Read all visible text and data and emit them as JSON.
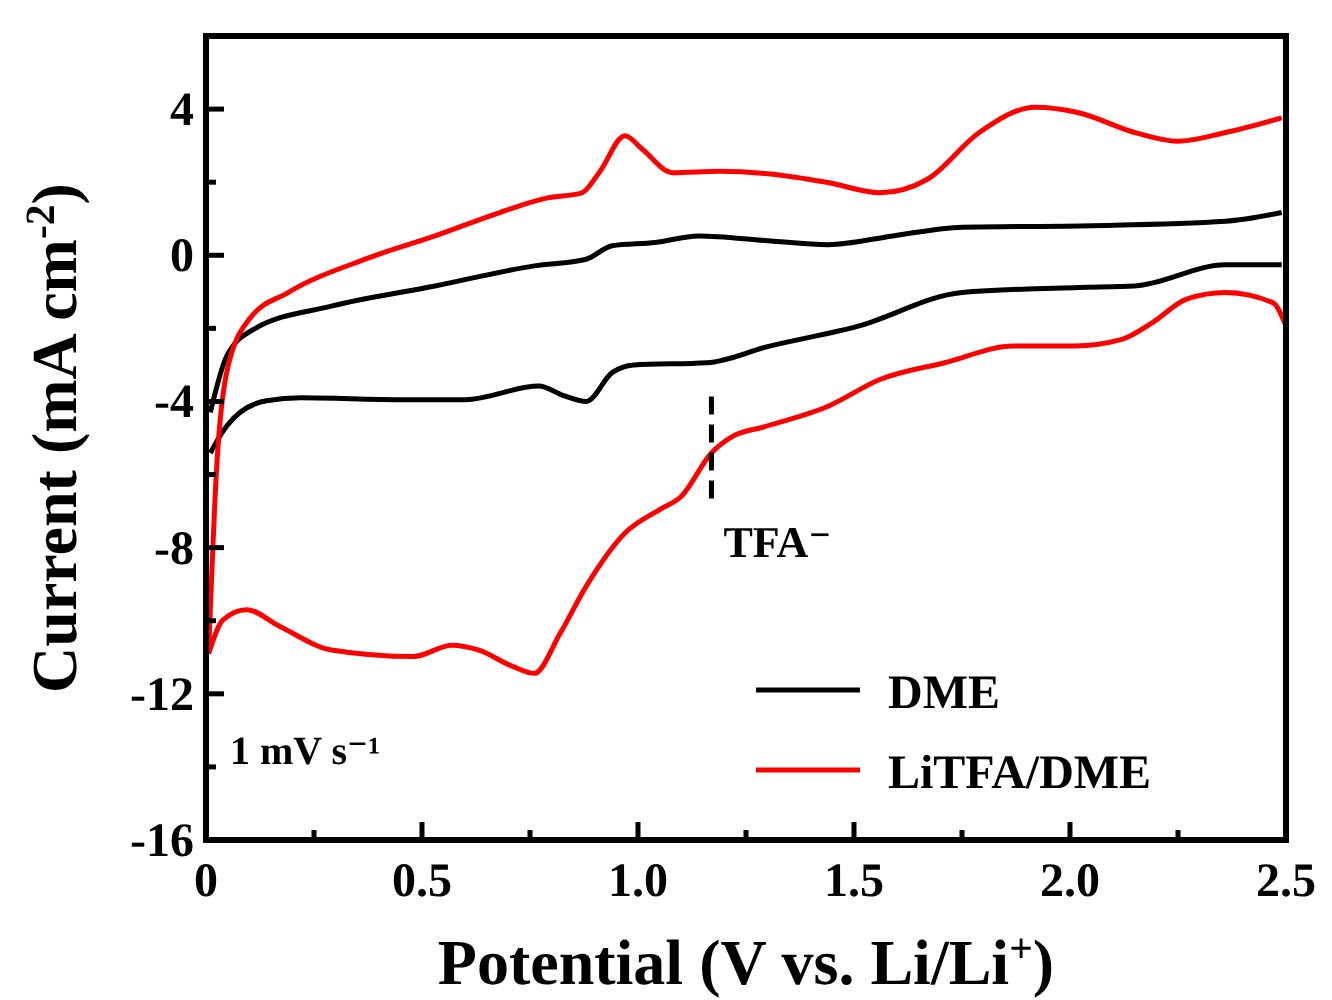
{
  "chart_data": {
    "type": "line",
    "xlabel": "Potential (V vs. Li/Li$^{+}$)",
    "ylabel": "Current (mA cm$^{-2}$)",
    "xlim": [
      0,
      2.5
    ],
    "ylim": [
      -16,
      6
    ],
    "xticks": [
      0,
      {
        "value": 0.25,
        "label": null
      },
      {
        "value": 0.5,
        "label": "0.5"
      },
      {
        "value": 0.75,
        "label": null
      },
      {
        "value": 1,
        "label": "1.0"
      },
      {
        "value": 1.25,
        "label": null
      },
      {
        "value": 1.5,
        "label": "1.5"
      },
      {
        "value": 1.75,
        "label": null
      },
      {
        "value": 2,
        "label": "2.0"
      },
      {
        "value": 2.25,
        "label": null
      },
      {
        "value": 2.5,
        "label": "2.5"
      }
    ],
    "yticks": [
      -16,
      {
        "value": -14,
        "label": null
      },
      -12,
      {
        "value": -10,
        "label": null
      },
      -8,
      {
        "value": -6,
        "label": null
      },
      -4,
      {
        "value": -2,
        "label": null
      },
      0,
      {
        "value": 2,
        "label": null
      },
      4
    ],
    "legend": "bottom right",
    "grid": false,
    "marker": "none",
    "line_style": "solid",
    "annotations": [
      {
        "text": "TFA⁻",
        "x": 1.17,
        "y": -5.4
      },
      "1 mV s⁻¹"
    ],
    "series": [
      {
        "name": "DME",
        "color": "#000000",
        "x": [
          0.01,
          0.048,
          0.11,
          0.29,
          0.53,
          0.76,
          0.88,
          0.94,
          1.04,
          1.14,
          1.3,
          1.44,
          1.59,
          1.75,
          2.05,
          2.36,
          2.49
        ],
        "values": [
          -4.3,
          -2.76,
          -2.03,
          -1.39,
          -0.84,
          -0.29,
          -0.11,
          0.26,
          0.35,
          0.53,
          0.4,
          0.29,
          0.53,
          0.77,
          0.81,
          0.93,
          1.17
        ]
      },
      {
        "color": "#000000",
        "x": [
          0.01,
          0.048,
          0.14,
          0.22,
          0.45,
          0.6,
          0.77,
          0.83,
          0.88,
          0.94,
          0.99,
          1.16,
          1.3,
          1.51,
          1.75,
          2.02,
          2.15,
          2.36,
          2.49
        ],
        "values": [
          -5.41,
          -4.67,
          -3.98,
          -3.9,
          -3.95,
          -3.95,
          -3.58,
          -3.85,
          -4.0,
          -3.21,
          -3.0,
          -2.94,
          -2.5,
          -1.94,
          -1.02,
          -0.88,
          -0.84,
          -0.26,
          -0.26
        ]
      },
      {
        "name": "LiTFA/DME",
        "color": "#ff0000",
        "x": [
          0.006,
          0.025,
          0.048,
          0.1,
          0.19,
          0.37,
          0.53,
          0.68,
          0.79,
          0.87,
          0.91,
          0.97,
          1.01,
          1.08,
          1.19,
          1.3,
          1.44,
          1.56,
          1.67,
          1.79,
          1.92,
          2.02,
          2.15,
          2.25,
          2.36,
          2.49
        ],
        "values": [
          -10.9,
          -5.75,
          -3.2,
          -1.75,
          -1.02,
          -0.1,
          0.53,
          1.17,
          1.57,
          1.71,
          2.26,
          3.27,
          2.9,
          2.26,
          2.3,
          2.23,
          1.99,
          1.71,
          2.08,
          3.36,
          4.05,
          3.9,
          3.36,
          3.12,
          3.36,
          3.76
        ]
      },
      {
        "color": "#ff0000",
        "x": [
          0.006,
          0.04,
          0.094,
          0.17,
          0.29,
          0.48,
          0.57,
          0.63,
          0.71,
          0.76,
          0.82,
          0.88,
          0.97,
          1.05,
          1.1,
          1.17,
          1.22,
          1.29,
          1.44,
          1.56,
          1.71,
          1.87,
          2.01,
          2.12,
          2.19,
          2.27,
          2.36,
          2.47,
          2.5
        ],
        "values": [
          -10.9,
          -9.97,
          -9.7,
          -10.15,
          -10.8,
          -10.98,
          -10.67,
          -10.8,
          -11.25,
          -11.44,
          -10.34,
          -9.06,
          -7.6,
          -6.96,
          -6.6,
          -5.41,
          -4.95,
          -4.7,
          -4.13,
          -3.4,
          -2.94,
          -2.48,
          -2.48,
          -2.3,
          -1.85,
          -1.2,
          -1.02,
          -1.3,
          -1.94
        ]
      }
    ]
  }
}
